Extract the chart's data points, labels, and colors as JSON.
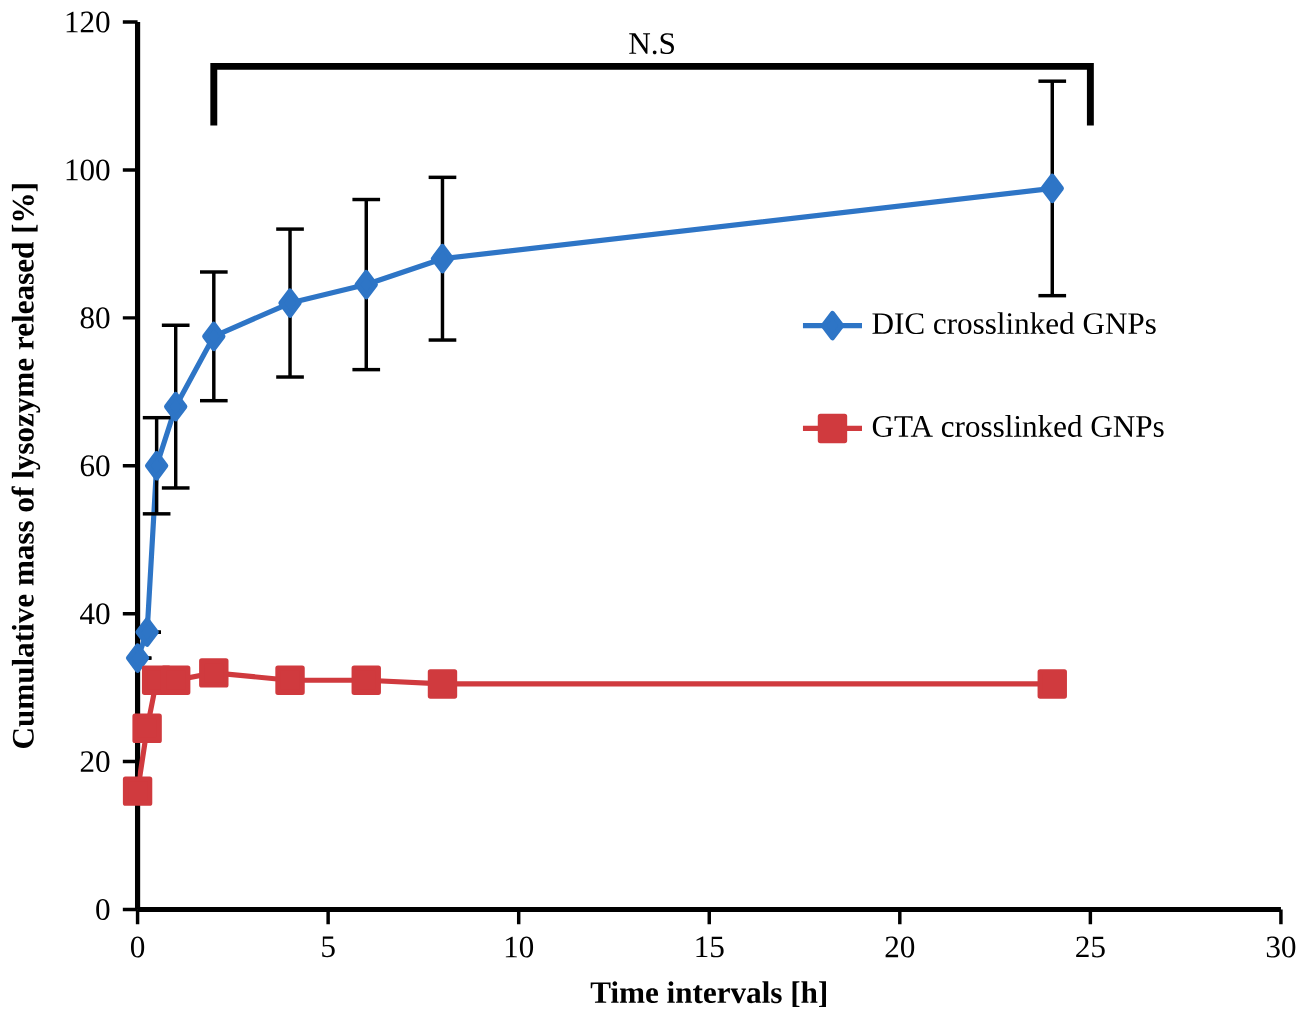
{
  "chart_data": {
    "type": "line",
    "xlabel": "Time intervals [h]",
    "ylabel": "Cumulative mass of lysozyme released [%]",
    "x": [
      0,
      0.25,
      0.5,
      1,
      2,
      4,
      6,
      8,
      24
    ],
    "series": [
      {
        "name": "DIC crosslinked GNPs",
        "color": "#2e75c6",
        "marker": "diamond",
        "values": [
          34,
          37.5,
          60,
          68,
          77.5,
          82,
          84.5,
          88,
          97.5
        ],
        "errors": [
          null,
          null,
          6.5,
          11,
          8.7,
          10,
          11.5,
          11,
          14.5
        ]
      },
      {
        "name": "GTA crosslinked GNPs",
        "color": "#d03a3e",
        "marker": "square",
        "values": [
          16,
          24.5,
          31,
          31,
          32,
          31,
          31,
          30.5,
          30.5
        ]
      }
    ],
    "xlim": [
      0,
      30
    ],
    "ylim": [
      0,
      120
    ],
    "xticks": [
      0,
      5,
      10,
      15,
      20,
      25,
      30
    ],
    "yticks": [
      0,
      20,
      40,
      60,
      80,
      100,
      120
    ],
    "annotations": [
      "N.S"
    ],
    "legend": "right",
    "grid": false
  }
}
